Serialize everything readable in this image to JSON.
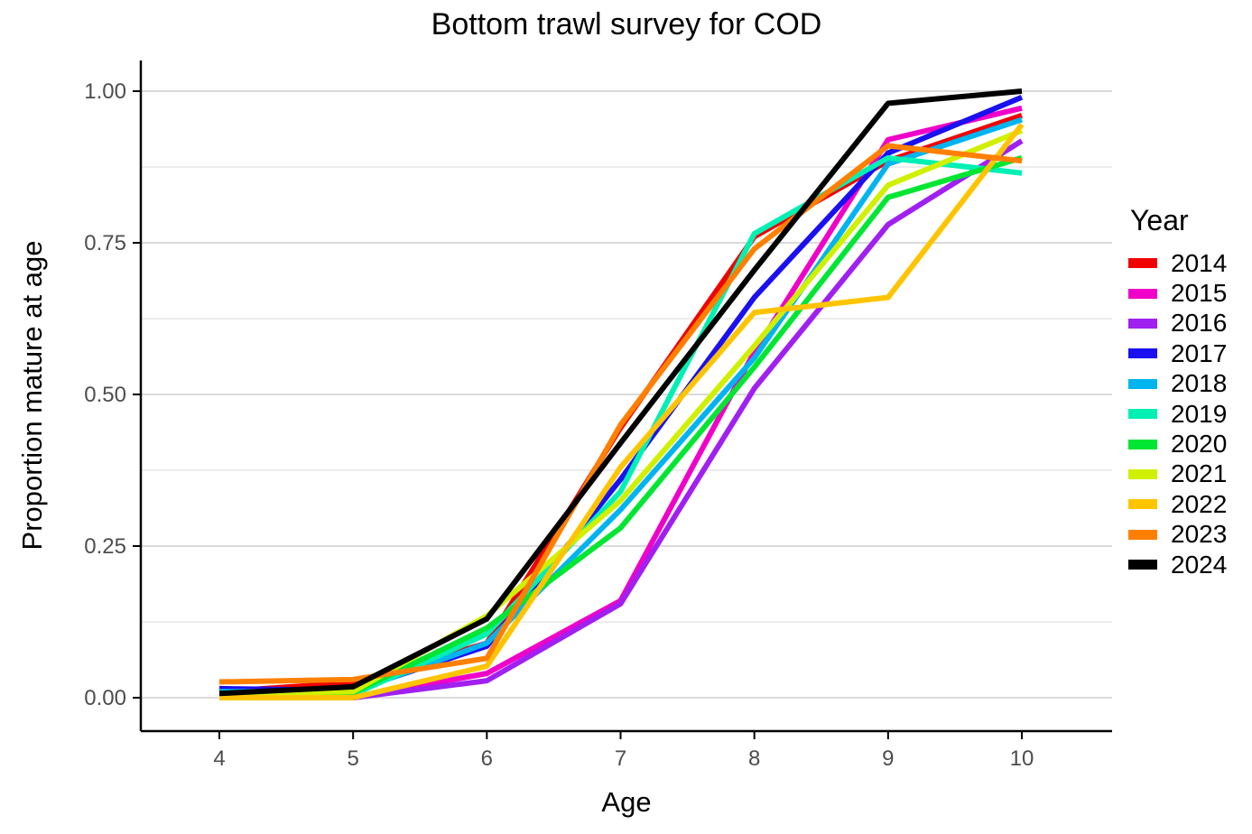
{
  "title": "Bottom trawl survey for COD",
  "chart_data": {
    "type": "line",
    "title": "Bottom trawl survey for COD",
    "xlabel": "Age",
    "ylabel": "Proportion mature at age",
    "x": [
      4,
      5,
      6,
      7,
      8,
      9,
      10
    ],
    "xtick_labels": [
      "4",
      "5",
      "6",
      "7",
      "8",
      "9",
      "10"
    ],
    "ytick_labels": [
      "0.00",
      "0.25",
      "0.50",
      "0.75",
      "1.00"
    ],
    "ytick_values": [
      0,
      0.25,
      0.5,
      0.75,
      1
    ],
    "minor_ytick_values": [
      0.125,
      0.375,
      0.625,
      0.875
    ],
    "xlim": [
      3.41,
      10.67
    ],
    "ylim": [
      -0.055,
      1.05
    ],
    "grid": "horizontal-major-and-minor",
    "legend_position": "right",
    "legend_title": "Year",
    "series": [
      {
        "name": "2014",
        "color": "#F00000",
        "values": [
          0.01,
          0.025,
          0.09,
          0.445,
          0.76,
          0.885,
          0.96
        ]
      },
      {
        "name": "2015",
        "color": "#F000C8",
        "values": [
          0.008,
          0.0,
          0.04,
          0.16,
          0.57,
          0.92,
          0.972
        ]
      },
      {
        "name": "2016",
        "color": "#A020F0",
        "values": [
          0.008,
          0.0,
          0.028,
          0.155,
          0.51,
          0.78,
          0.918
        ]
      },
      {
        "name": "2017",
        "color": "#1A10F0",
        "values": [
          0.015,
          0.012,
          0.085,
          0.36,
          0.66,
          0.898,
          0.99
        ]
      },
      {
        "name": "2018",
        "color": "#00B4F0",
        "values": [
          0.01,
          0.01,
          0.09,
          0.31,
          0.56,
          0.88,
          0.953
        ]
      },
      {
        "name": "2019",
        "color": "#00F0B4",
        "values": [
          0.008,
          0.005,
          0.105,
          0.34,
          0.765,
          0.89,
          0.865
        ]
      },
      {
        "name": "2020",
        "color": "#00E632",
        "values": [
          0.006,
          0.008,
          0.115,
          0.28,
          0.545,
          0.825,
          0.89
        ]
      },
      {
        "name": "2021",
        "color": "#D0F000",
        "values": [
          0.006,
          0.01,
          0.135,
          0.325,
          0.58,
          0.845,
          0.935
        ]
      },
      {
        "name": "2022",
        "color": "#FFC400",
        "values": [
          0.0,
          0.0,
          0.052,
          0.38,
          0.635,
          0.66,
          0.945
        ]
      },
      {
        "name": "2023",
        "color": "#FF8000",
        "values": [
          0.026,
          0.03,
          0.065,
          0.45,
          0.74,
          0.91,
          0.885
        ]
      },
      {
        "name": "2024",
        "color": "#000000",
        "values": [
          0.007,
          0.018,
          0.13,
          0.42,
          0.705,
          0.98,
          1.0
        ]
      }
    ],
    "style": {
      "axis_color": "#000000",
      "tick_label_color": "#4D4D4D",
      "major_grid_color": "#D4D4D4",
      "minor_grid_color": "#E5E5E5",
      "background": "#FFFFFF",
      "line_width": 6
    }
  }
}
